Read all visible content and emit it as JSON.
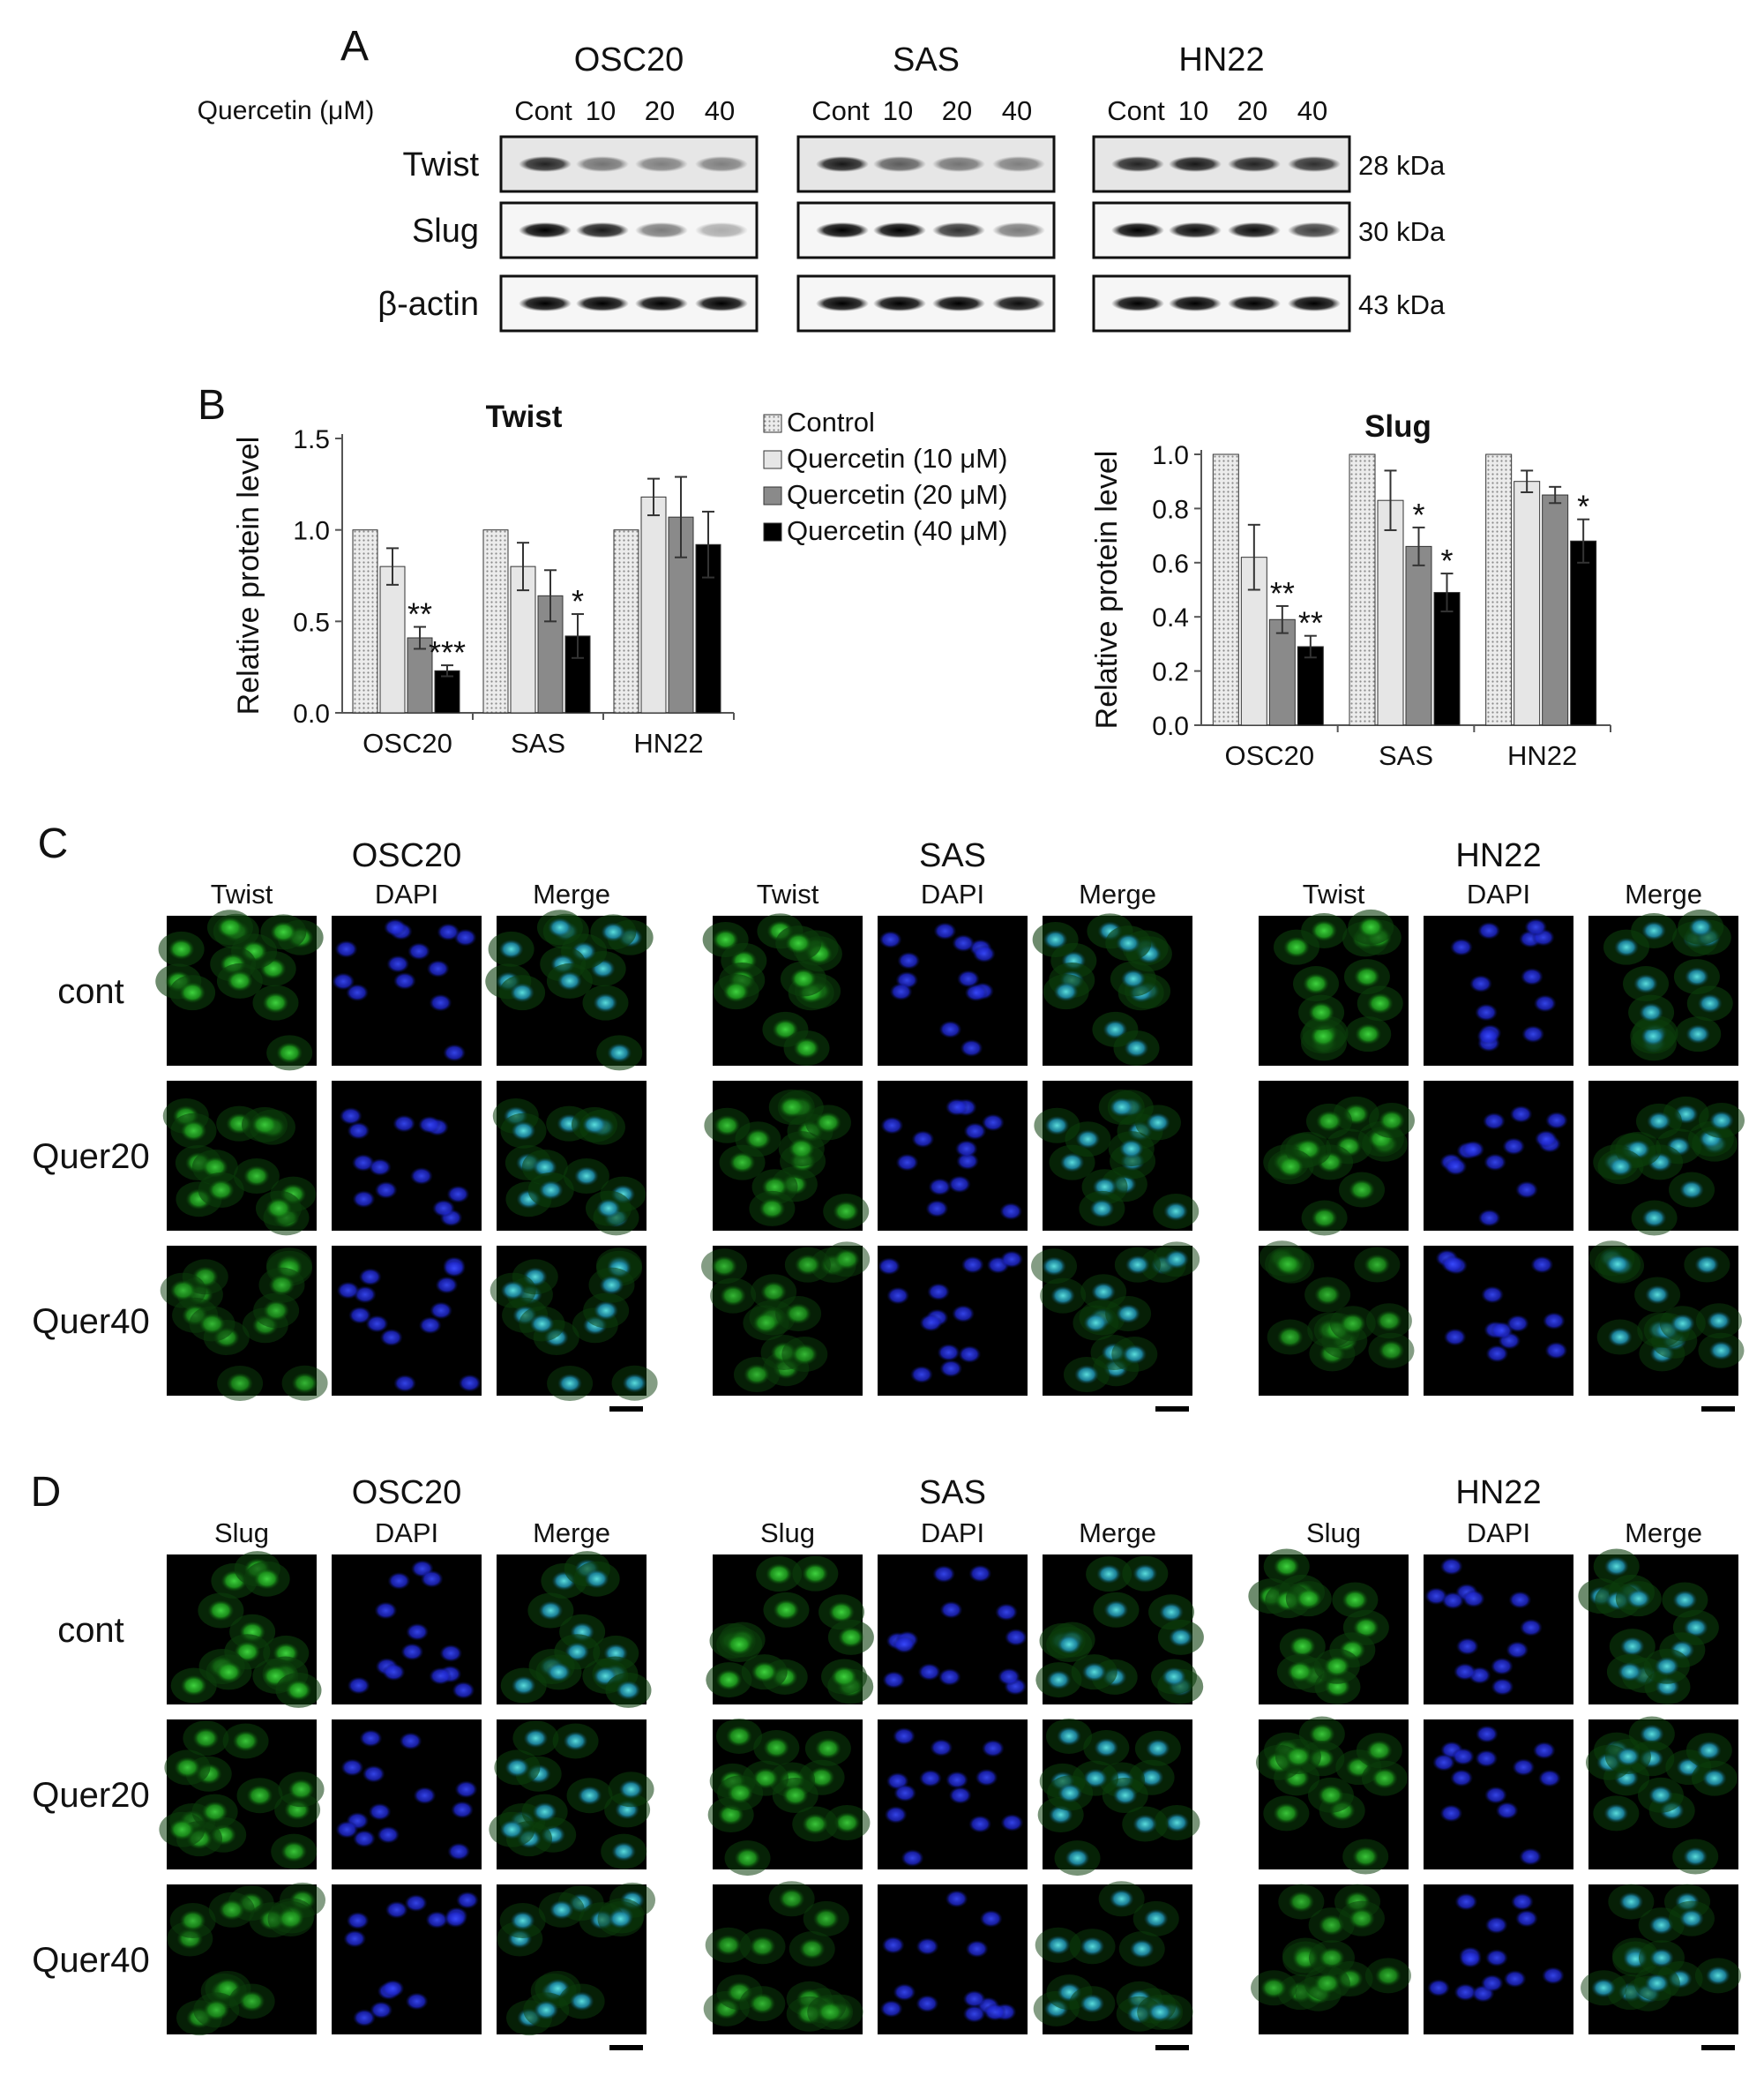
{
  "panel_letters": [
    "A",
    "B",
    "C",
    "D"
  ],
  "panelA": {
    "treatment_label": "Quercetin (μM)",
    "cell_lines": [
      "OSC20",
      "SAS",
      "HN22"
    ],
    "lane_labels": [
      "Cont",
      "10",
      "20",
      "40"
    ],
    "proteins": [
      {
        "name": "Twist",
        "kda": "28 kDa"
      },
      {
        "name": "Slug",
        "kda": "30 kDa"
      },
      {
        "name": "β-actin",
        "kda": "43 kDa"
      }
    ],
    "band_intensities": {
      "Twist": [
        [
          0.85,
          0.5,
          0.45,
          0.45
        ],
        [
          0.9,
          0.6,
          0.5,
          0.45
        ],
        [
          0.85,
          0.9,
          0.85,
          0.8
        ]
      ],
      "Slug": [
        [
          1.0,
          0.9,
          0.5,
          0.3
        ],
        [
          1.0,
          1.0,
          0.8,
          0.5
        ],
        [
          1.0,
          0.95,
          0.95,
          0.75
        ]
      ],
      "β-actin": [
        [
          1.0,
          1.0,
          1.0,
          1.0
        ],
        [
          1.0,
          1.0,
          1.0,
          0.95
        ],
        [
          1.0,
          1.0,
          1.0,
          1.0
        ]
      ]
    }
  },
  "panelB": {
    "legend": [
      "Control",
      "Quercetin (10 μM)",
      "Quercetin (20 μM)",
      "Quercetin (40 μM)"
    ],
    "colors": [
      "#d8d8d8",
      "#e6e6e6",
      "#8a8a8a",
      "#000000"
    ]
  },
  "chart_data": [
    {
      "type": "bar",
      "title": "Twist",
      "ylabel": "Relative protein level",
      "xlabel": "",
      "ylim": [
        0,
        1.5
      ],
      "yticks": [
        "0.0",
        "0.5",
        "1.0",
        "1.5"
      ],
      "categories": [
        "OSC20",
        "SAS",
        "HN22"
      ],
      "series": [
        {
          "name": "Control",
          "values": [
            1.0,
            1.0,
            1.0
          ],
          "errors": [
            0,
            0,
            0
          ]
        },
        {
          "name": "Quercetin (10 μM)",
          "values": [
            0.8,
            0.8,
            1.18
          ],
          "errors": [
            0.1,
            0.13,
            0.1
          ]
        },
        {
          "name": "Quercetin (20 μM)",
          "values": [
            0.41,
            0.64,
            1.07
          ],
          "errors": [
            0.06,
            0.14,
            0.22
          ]
        },
        {
          "name": "Quercetin (40 μM)",
          "values": [
            0.23,
            0.42,
            0.92
          ],
          "errors": [
            0.03,
            0.12,
            0.18
          ]
        }
      ],
      "annotations": [
        {
          "category": 0,
          "series": 2,
          "text": "**"
        },
        {
          "category": 0,
          "series": 3,
          "text": "***"
        },
        {
          "category": 1,
          "series": 3,
          "text": "*"
        }
      ]
    },
    {
      "type": "bar",
      "title": "Slug",
      "ylabel": "Relative protein level",
      "xlabel": "",
      "ylim": [
        0,
        1.0
      ],
      "yticks": [
        "0.0",
        "0.2",
        "0.4",
        "0.6",
        "0.8",
        "1.0"
      ],
      "categories": [
        "OSC20",
        "SAS",
        "HN22"
      ],
      "series": [
        {
          "name": "Control",
          "values": [
            1.0,
            1.0,
            1.0
          ],
          "errors": [
            0,
            0,
            0
          ]
        },
        {
          "name": "Quercetin (10 μM)",
          "values": [
            0.62,
            0.83,
            0.9
          ],
          "errors": [
            0.12,
            0.11,
            0.04
          ]
        },
        {
          "name": "Quercetin (20 μM)",
          "values": [
            0.39,
            0.66,
            0.85
          ],
          "errors": [
            0.05,
            0.07,
            0.03
          ]
        },
        {
          "name": "Quercetin (40 μM)",
          "values": [
            0.29,
            0.49,
            0.68
          ],
          "errors": [
            0.04,
            0.07,
            0.08
          ]
        }
      ],
      "annotations": [
        {
          "category": 0,
          "series": 2,
          "text": "**"
        },
        {
          "category": 0,
          "series": 3,
          "text": "**"
        },
        {
          "category": 1,
          "series": 2,
          "text": "*"
        },
        {
          "category": 1,
          "series": 3,
          "text": "*"
        },
        {
          "category": 2,
          "series": 3,
          "text": "*"
        }
      ]
    }
  ],
  "panelC": {
    "cell_lines": [
      "OSC20",
      "SAS",
      "HN22"
    ],
    "columns": [
      "Twist",
      "DAPI",
      "Merge"
    ],
    "rows": [
      "cont",
      "Quer20",
      "Quer40"
    ]
  },
  "panelD": {
    "cell_lines": [
      "OSC20",
      "SAS",
      "HN22"
    ],
    "columns": [
      "Slug",
      "DAPI",
      "Merge"
    ],
    "rows": [
      "cont",
      "Quer20",
      "Quer40"
    ]
  }
}
